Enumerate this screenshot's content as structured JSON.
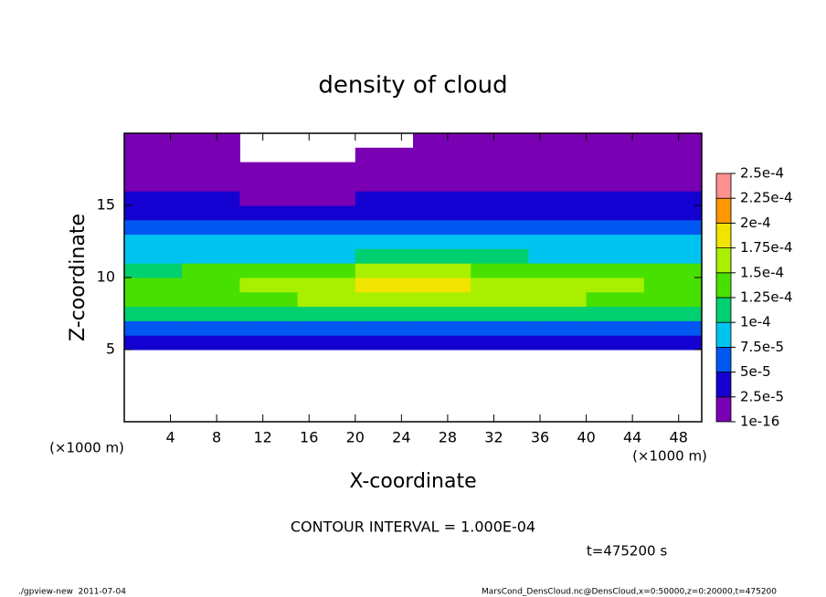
{
  "chart_data": {
    "type": "heatmap",
    "title": "density of cloud",
    "x_label": "X-coordinate",
    "y_label": "Z-coordinate",
    "x_unit": "(×1000 m)",
    "y_unit": "(×1000 m)",
    "annotation": "CONTOUR INTERVAL = 1.000E-04",
    "time_label": "t=475200 s",
    "footer_left": "./gpview-new  2011-07-04",
    "footer_right": "MarsCond_DensCloud.nc@DensCloud,x=0:50000,z=0:20000,t=475200",
    "xlim": [
      0,
      50
    ],
    "ylim": [
      0,
      20
    ],
    "xticks": [
      4,
      8,
      12,
      16,
      20,
      24,
      28,
      32,
      36,
      40,
      44,
      48
    ],
    "yticks": [
      5,
      10,
      15
    ],
    "x": [
      2.5,
      7.5,
      12.5,
      17.5,
      22.5,
      27.5,
      32.5,
      37.5,
      42.5,
      47.5
    ],
    "y": [
      0.5,
      1.5,
      2.5,
      3.5,
      4.5,
      5.5,
      6.5,
      7.5,
      8.5,
      9.5,
      10.5,
      11.5,
      12.5,
      13.5,
      14.5,
      15.5,
      16.5,
      17.5,
      18.5,
      19.5
    ],
    "z": [
      [
        null,
        null,
        null,
        null,
        null,
        null,
        null,
        null,
        null,
        null
      ],
      [
        null,
        null,
        null,
        null,
        null,
        null,
        null,
        null,
        null,
        null
      ],
      [
        null,
        null,
        null,
        null,
        null,
        null,
        null,
        null,
        null,
        null
      ],
      [
        null,
        null,
        null,
        null,
        null,
        null,
        null,
        null,
        null,
        null
      ],
      [
        null,
        null,
        null,
        null,
        null,
        null,
        null,
        null,
        null,
        null
      ],
      [
        3e-05,
        3e-05,
        3e-05,
        3e-05,
        3e-05,
        3e-05,
        3e-05,
        3e-05,
        3e-05,
        3e-05
      ],
      [
        7e-05,
        7e-05,
        7e-05,
        7e-05,
        7e-05,
        7e-05,
        7e-05,
        7e-05,
        7e-05,
        7e-05
      ],
      [
        0.00011,
        0.00011,
        0.00011,
        0.00011,
        0.000115,
        0.000115,
        0.000115,
        0.00011,
        0.00011,
        0.00011
      ],
      [
        0.000135,
        0.00014,
        0.000145,
        0.00015,
        0.000155,
        0.00016,
        0.000155,
        0.00015,
        0.000145,
        0.00014
      ],
      [
        0.00014,
        0.000145,
        0.00015,
        0.00016,
        0.000175,
        0.00018,
        0.00017,
        0.00016,
        0.00015,
        0.000145
      ],
      [
        0.00012,
        0.000125,
        0.00013,
        0.00014,
        0.00015,
        0.000155,
        0.000145,
        0.000135,
        0.00013,
        0.000125
      ],
      [
        9e-05,
        9e-05,
        9e-05,
        9.5e-05,
        0.0001,
        0.0001,
        0.0001,
        9.5e-05,
        9e-05,
        9e-05
      ],
      [
        8e-05,
        8e-05,
        7.5e-05,
        7.5e-05,
        8e-05,
        8e-05,
        8e-05,
        8e-05,
        8e-05,
        8e-05
      ],
      [
        6e-05,
        5.5e-05,
        5e-05,
        5e-05,
        5.5e-05,
        6e-05,
        6e-05,
        6e-05,
        6e-05,
        6e-05
      ],
      [
        4e-05,
        4e-05,
        3e-05,
        3e-05,
        3.5e-05,
        4e-05,
        4e-05,
        4e-05,
        4e-05,
        4e-05
      ],
      [
        3e-05,
        2.5e-05,
        2e-05,
        2e-05,
        2.5e-05,
        3e-05,
        3e-05,
        3e-05,
        3e-05,
        3e-05
      ],
      [
        2e-05,
        1.5e-05,
        1e-05,
        1e-05,
        1.5e-05,
        2e-05,
        2e-05,
        2e-05,
        2e-05,
        2e-05
      ],
      [
        1e-05,
        1e-05,
        8e-06,
        6e-06,
        8e-06,
        1e-05,
        1e-05,
        1e-05,
        1e-05,
        1e-05
      ],
      [
        5e-06,
        5e-06,
        null,
        null,
        3e-06,
        5e-06,
        5e-06,
        5e-06,
        5e-06,
        5e-06
      ],
      [
        3e-06,
        2e-06,
        null,
        null,
        null,
        2e-06,
        2e-06,
        2e-06,
        2e-06,
        2e-06
      ]
    ],
    "levels": [
      {
        "value": 1e-16,
        "label": "1e-16"
      },
      {
        "value": 2.5e-05,
        "label": "2.5e-5"
      },
      {
        "value": 5e-05,
        "label": "5e-5"
      },
      {
        "value": 7.5e-05,
        "label": "7.5e-5"
      },
      {
        "value": 0.0001,
        "label": "1e-4"
      },
      {
        "value": 0.000125,
        "label": "1.25e-4"
      },
      {
        "value": 0.00015,
        "label": "1.5e-4"
      },
      {
        "value": 0.000175,
        "label": "1.75e-4"
      },
      {
        "value": 0.0002,
        "label": "2e-4"
      },
      {
        "value": 0.000225,
        "label": "2.25e-4"
      },
      {
        "value": 0.00025,
        "label": "2.5e-4"
      }
    ],
    "colors": [
      "#7a00b4",
      "#1400d0",
      "#0058f0",
      "#00c4f0",
      "#00d070",
      "#48e000",
      "#a8f000",
      "#f0e400",
      "#ff9800",
      "#ff9090"
    ]
  }
}
